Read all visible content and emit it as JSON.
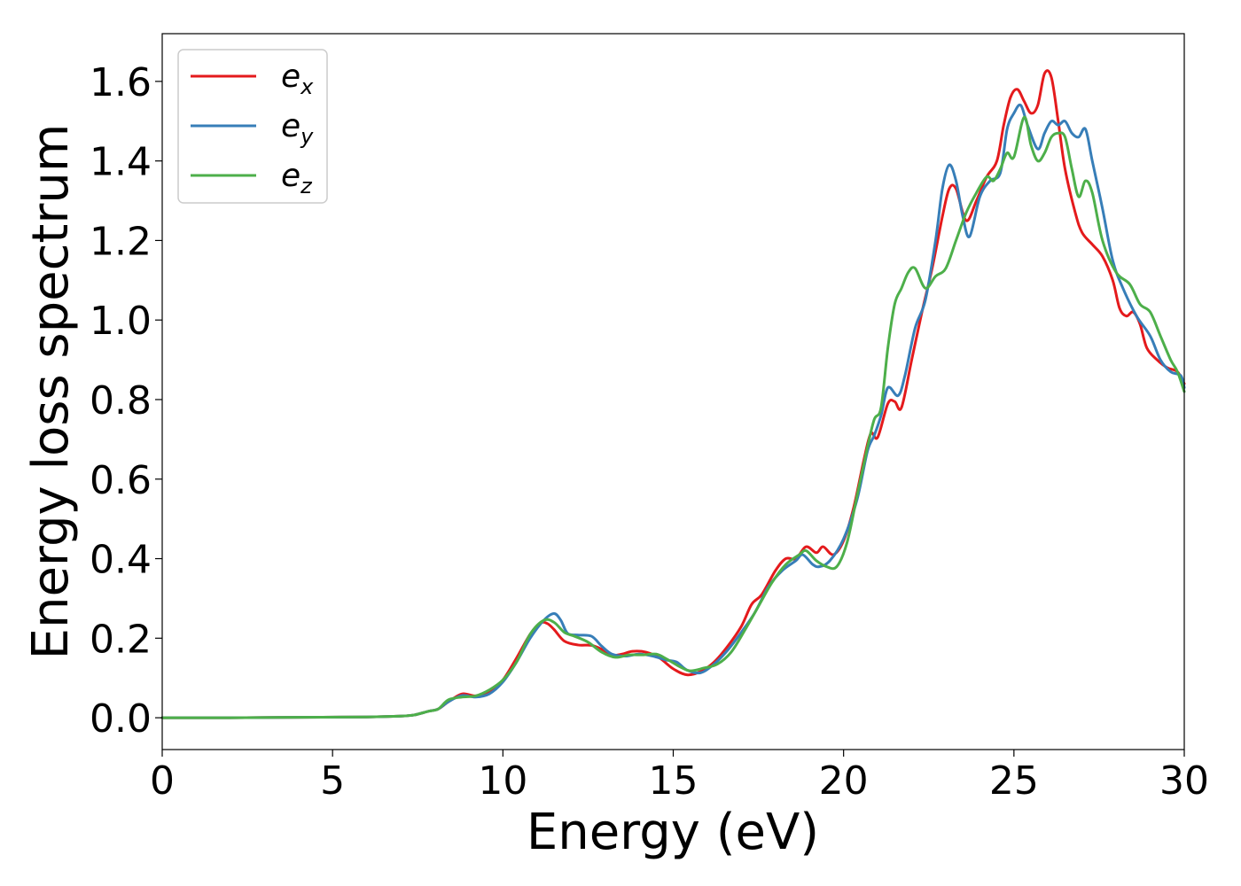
{
  "chart_data": {
    "type": "line",
    "title": "",
    "xlabel": "Energy (eV)",
    "ylabel": "Energy loss spectrum",
    "xlim": [
      0,
      30
    ],
    "ylim": [
      -0.08,
      1.72
    ],
    "xticks": [
      0,
      5,
      10,
      15,
      20,
      25,
      30
    ],
    "yticks": [
      0.0,
      0.2,
      0.4,
      0.6,
      0.8,
      1.0,
      1.2,
      1.4,
      1.6
    ],
    "grid": false,
    "legend": {
      "placement": "top-left"
    },
    "series": [
      {
        "name_base": "e",
        "name_sub": "x",
        "color": "#e41a1c",
        "points": [
          [
            0,
            0
          ],
          [
            2,
            0
          ],
          [
            4,
            0.001
          ],
          [
            6,
            0.002
          ],
          [
            7,
            0.004
          ],
          [
            7.4,
            0.007
          ],
          [
            7.8,
            0.016
          ],
          [
            8.1,
            0.022
          ],
          [
            8.4,
            0.04
          ],
          [
            8.8,
            0.06
          ],
          [
            9.2,
            0.055
          ],
          [
            9.6,
            0.065
          ],
          [
            10,
            0.095
          ],
          [
            10.4,
            0.15
          ],
          [
            10.8,
            0.21
          ],
          [
            11.1,
            0.238
          ],
          [
            11.3,
            0.237
          ],
          [
            11.5,
            0.222
          ],
          [
            11.8,
            0.193
          ],
          [
            12.2,
            0.183
          ],
          [
            12.6,
            0.182
          ],
          [
            12.9,
            0.172
          ],
          [
            13.2,
            0.157
          ],
          [
            13.5,
            0.16
          ],
          [
            13.8,
            0.167
          ],
          [
            14.2,
            0.165
          ],
          [
            14.6,
            0.15
          ],
          [
            15,
            0.123
          ],
          [
            15.4,
            0.108
          ],
          [
            15.8,
            0.116
          ],
          [
            16.2,
            0.14
          ],
          [
            16.6,
            0.18
          ],
          [
            17,
            0.23
          ],
          [
            17.3,
            0.285
          ],
          [
            17.6,
            0.31
          ],
          [
            18,
            0.37
          ],
          [
            18.3,
            0.4
          ],
          [
            18.6,
            0.4
          ],
          [
            18.9,
            0.43
          ],
          [
            19.2,
            0.415
          ],
          [
            19.4,
            0.43
          ],
          [
            19.7,
            0.41
          ],
          [
            20,
            0.445
          ],
          [
            20.3,
            0.53
          ],
          [
            20.6,
            0.65
          ],
          [
            20.8,
            0.715
          ],
          [
            21,
            0.705
          ],
          [
            21.3,
            0.79
          ],
          [
            21.5,
            0.795
          ],
          [
            21.7,
            0.78
          ],
          [
            22,
            0.9
          ],
          [
            22.3,
            1.02
          ],
          [
            22.6,
            1.13
          ],
          [
            22.9,
            1.26
          ],
          [
            23.1,
            1.33
          ],
          [
            23.3,
            1.33
          ],
          [
            23.6,
            1.25
          ],
          [
            23.9,
            1.3
          ],
          [
            24.2,
            1.36
          ],
          [
            24.5,
            1.4
          ],
          [
            24.7,
            1.49
          ],
          [
            24.9,
            1.56
          ],
          [
            25.1,
            1.58
          ],
          [
            25.3,
            1.55
          ],
          [
            25.5,
            1.52
          ],
          [
            25.7,
            1.54
          ],
          [
            25.9,
            1.62
          ],
          [
            26.1,
            1.61
          ],
          [
            26.3,
            1.5
          ],
          [
            26.5,
            1.38
          ],
          [
            26.8,
            1.27
          ],
          [
            27,
            1.22
          ],
          [
            27.3,
            1.19
          ],
          [
            27.6,
            1.16
          ],
          [
            27.9,
            1.1
          ],
          [
            28.1,
            1.03
          ],
          [
            28.3,
            1.01
          ],
          [
            28.5,
            1.02
          ],
          [
            28.7,
            0.99
          ],
          [
            28.9,
            0.93
          ],
          [
            29.2,
            0.9
          ],
          [
            29.5,
            0.88
          ],
          [
            29.8,
            0.87
          ],
          [
            30,
            0.84
          ]
        ]
      },
      {
        "name_base": "e",
        "name_sub": "y",
        "color": "#377eb8",
        "points": [
          [
            0,
            0
          ],
          [
            2,
            0
          ],
          [
            4,
            0.001
          ],
          [
            6,
            0.002
          ],
          [
            7,
            0.004
          ],
          [
            7.4,
            0.007
          ],
          [
            7.8,
            0.016
          ],
          [
            8.1,
            0.022
          ],
          [
            8.4,
            0.04
          ],
          [
            8.8,
            0.056
          ],
          [
            9.2,
            0.052
          ],
          [
            9.6,
            0.06
          ],
          [
            10,
            0.09
          ],
          [
            10.4,
            0.14
          ],
          [
            10.8,
            0.2
          ],
          [
            11.2,
            0.245
          ],
          [
            11.5,
            0.262
          ],
          [
            11.7,
            0.245
          ],
          [
            11.9,
            0.212
          ],
          [
            12.2,
            0.208
          ],
          [
            12.6,
            0.205
          ],
          [
            12.9,
            0.18
          ],
          [
            13.2,
            0.16
          ],
          [
            13.6,
            0.155
          ],
          [
            14,
            0.16
          ],
          [
            14.4,
            0.155
          ],
          [
            14.8,
            0.145
          ],
          [
            15.1,
            0.14
          ],
          [
            15.4,
            0.12
          ],
          [
            15.8,
            0.113
          ],
          [
            16.2,
            0.135
          ],
          [
            16.6,
            0.17
          ],
          [
            17,
            0.215
          ],
          [
            17.4,
            0.265
          ],
          [
            17.8,
            0.33
          ],
          [
            18.2,
            0.37
          ],
          [
            18.6,
            0.395
          ],
          [
            18.8,
            0.41
          ],
          [
            19.1,
            0.385
          ],
          [
            19.3,
            0.38
          ],
          [
            19.6,
            0.395
          ],
          [
            20,
            0.45
          ],
          [
            20.4,
            0.55
          ],
          [
            20.7,
            0.67
          ],
          [
            20.9,
            0.71
          ],
          [
            21.1,
            0.76
          ],
          [
            21.3,
            0.83
          ],
          [
            21.6,
            0.81
          ],
          [
            21.8,
            0.86
          ],
          [
            22.1,
            0.98
          ],
          [
            22.4,
            1.05
          ],
          [
            22.7,
            1.2
          ],
          [
            22.9,
            1.33
          ],
          [
            23.1,
            1.39
          ],
          [
            23.3,
            1.35
          ],
          [
            23.5,
            1.26
          ],
          [
            23.7,
            1.21
          ],
          [
            24,
            1.31
          ],
          [
            24.3,
            1.35
          ],
          [
            24.6,
            1.37
          ],
          [
            24.8,
            1.48
          ],
          [
            25,
            1.52
          ],
          [
            25.2,
            1.54
          ],
          [
            25.4,
            1.49
          ],
          [
            25.7,
            1.43
          ],
          [
            25.9,
            1.47
          ],
          [
            26.1,
            1.5
          ],
          [
            26.3,
            1.49
          ],
          [
            26.5,
            1.5
          ],
          [
            26.7,
            1.47
          ],
          [
            26.9,
            1.46
          ],
          [
            27.1,
            1.48
          ],
          [
            27.3,
            1.4
          ],
          [
            27.6,
            1.28
          ],
          [
            27.9,
            1.15
          ],
          [
            28.2,
            1.08
          ],
          [
            28.6,
            1.01
          ],
          [
            29,
            0.96
          ],
          [
            29.3,
            0.9
          ],
          [
            29.6,
            0.87
          ],
          [
            29.9,
            0.86
          ],
          [
            30,
            0.83
          ]
        ]
      },
      {
        "name_base": "e",
        "name_sub": "z",
        "color": "#4daf4a",
        "points": [
          [
            0,
            0
          ],
          [
            2,
            0
          ],
          [
            4,
            0.001
          ],
          [
            6,
            0.002
          ],
          [
            7,
            0.004
          ],
          [
            7.4,
            0.007
          ],
          [
            7.8,
            0.016
          ],
          [
            8.1,
            0.022
          ],
          [
            8.4,
            0.045
          ],
          [
            8.8,
            0.052
          ],
          [
            9.2,
            0.055
          ],
          [
            9.6,
            0.07
          ],
          [
            10,
            0.095
          ],
          [
            10.4,
            0.14
          ],
          [
            10.8,
            0.21
          ],
          [
            11.2,
            0.245
          ],
          [
            11.5,
            0.24
          ],
          [
            11.8,
            0.215
          ],
          [
            12.1,
            0.205
          ],
          [
            12.5,
            0.19
          ],
          [
            12.9,
            0.165
          ],
          [
            13.3,
            0.152
          ],
          [
            13.7,
            0.158
          ],
          [
            14.1,
            0.158
          ],
          [
            14.5,
            0.16
          ],
          [
            14.8,
            0.148
          ],
          [
            15.2,
            0.128
          ],
          [
            15.5,
            0.118
          ],
          [
            15.9,
            0.125
          ],
          [
            16.3,
            0.135
          ],
          [
            16.7,
            0.165
          ],
          [
            17.1,
            0.22
          ],
          [
            17.5,
            0.28
          ],
          [
            17.9,
            0.34
          ],
          [
            18.3,
            0.385
          ],
          [
            18.7,
            0.41
          ],
          [
            18.9,
            0.42
          ],
          [
            19.2,
            0.395
          ],
          [
            19.5,
            0.38
          ],
          [
            19.8,
            0.38
          ],
          [
            20.1,
            0.44
          ],
          [
            20.4,
            0.56
          ],
          [
            20.7,
            0.68
          ],
          [
            20.9,
            0.75
          ],
          [
            21.1,
            0.78
          ],
          [
            21.3,
            0.93
          ],
          [
            21.5,
            1.04
          ],
          [
            21.7,
            1.08
          ],
          [
            21.9,
            1.12
          ],
          [
            22.1,
            1.13
          ],
          [
            22.4,
            1.08
          ],
          [
            22.7,
            1.11
          ],
          [
            23,
            1.13
          ],
          [
            23.3,
            1.2
          ],
          [
            23.6,
            1.27
          ],
          [
            23.9,
            1.32
          ],
          [
            24.2,
            1.36
          ],
          [
            24.4,
            1.35
          ],
          [
            24.6,
            1.38
          ],
          [
            24.8,
            1.42
          ],
          [
            25,
            1.41
          ],
          [
            25.3,
            1.51
          ],
          [
            25.5,
            1.44
          ],
          [
            25.7,
            1.4
          ],
          [
            25.9,
            1.42
          ],
          [
            26.1,
            1.46
          ],
          [
            26.3,
            1.47
          ],
          [
            26.5,
            1.46
          ],
          [
            26.7,
            1.38
          ],
          [
            26.9,
            1.31
          ],
          [
            27.1,
            1.35
          ],
          [
            27.3,
            1.32
          ],
          [
            27.6,
            1.2
          ],
          [
            28,
            1.12
          ],
          [
            28.4,
            1.09
          ],
          [
            28.7,
            1.04
          ],
          [
            29,
            1.02
          ],
          [
            29.3,
            0.96
          ],
          [
            29.6,
            0.9
          ],
          [
            29.8,
            0.87
          ],
          [
            30,
            0.82
          ]
        ]
      }
    ]
  }
}
